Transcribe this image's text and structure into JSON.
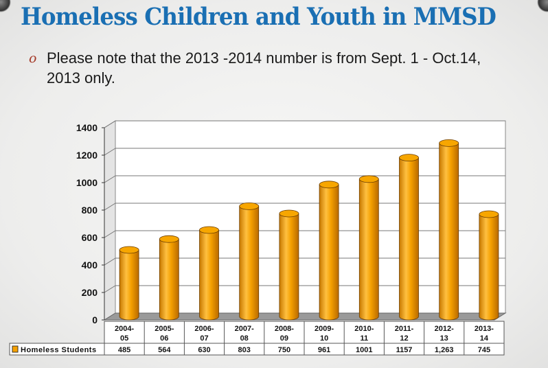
{
  "slide": {
    "title": "Homeless Children and Youth in MMSD",
    "bullet_icon": "ornamental-bullet",
    "note": "Please note that the 2013 -2014 number is from Sept. 1 - Oct.14, 2013 only."
  },
  "chart_data": {
    "type": "bar",
    "style": "3d-cylinder",
    "categories": [
      "2004-05",
      "2005-06",
      "2006-07",
      "2007-08",
      "2008-09",
      "2009-10",
      "2010-11",
      "2011-12",
      "2012-13",
      "2013-14"
    ],
    "category_lines": [
      [
        "2004-",
        "05"
      ],
      [
        "2005-",
        "06"
      ],
      [
        "2006-",
        "07"
      ],
      [
        "2007-",
        "08"
      ],
      [
        "2008-",
        "09"
      ],
      [
        "2009-",
        "10"
      ],
      [
        "2010-",
        "11"
      ],
      [
        "2011-",
        "12"
      ],
      [
        "2012-",
        "13"
      ],
      [
        "2013-",
        "14"
      ]
    ],
    "series": [
      {
        "name": "Homeless Students",
        "values": [
          485,
          564,
          630,
          803,
          750,
          961,
          1001,
          1157,
          1263,
          745
        ],
        "color": "#f5a000"
      }
    ],
    "value_labels": [
      "485",
      "564",
      "630",
      "803",
      "750",
      "961",
      "1001",
      "1157",
      "1,263",
      "745"
    ],
    "ylim": [
      0,
      1400
    ],
    "yticks": [
      0,
      200,
      400,
      600,
      800,
      1000,
      1200,
      1400
    ],
    "grid": true,
    "legend": "data-table",
    "title": "",
    "xlabel": "",
    "ylabel": ""
  }
}
